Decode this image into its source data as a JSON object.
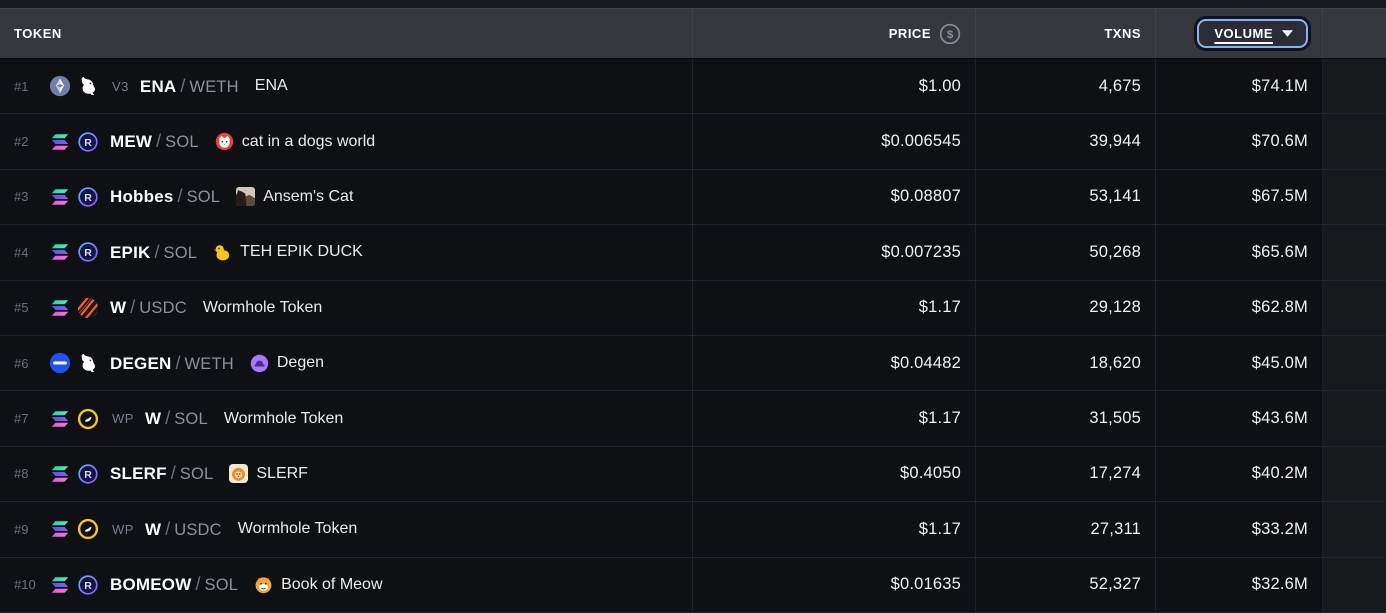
{
  "header": {
    "token_label": "TOKEN",
    "price_label": "PRICE",
    "price_icon": "dollar-circle-icon",
    "txns_label": "TXNS",
    "volume_label": "VOLUME",
    "volume_caret_icon": "caret-down-icon",
    "sorted_by": "VOLUME"
  },
  "colors": {
    "page_background": "#18191d",
    "header_background": "#35373d",
    "row_background": "#0f1013",
    "sort_button_border": "#86b3ef"
  },
  "table": {
    "pair_separator": "/",
    "rows": [
      {
        "rank": "#1",
        "chain_icon": "ethereum-icon",
        "dex_icon": "uniswap-icon",
        "label": "V3",
        "base": "ENA",
        "quote": "WETH",
        "logo_icon": "",
        "name": "ENA",
        "price": "$1.00",
        "txns": "4,675",
        "volume": "$74.1M"
      },
      {
        "rank": "#2",
        "chain_icon": "solana-icon",
        "dex_icon": "raydium-icon",
        "label": "",
        "base": "MEW",
        "quote": "SOL",
        "logo_icon": "mew-logo",
        "name": "cat in a dogs world",
        "price": "$0.006545",
        "txns": "39,944",
        "volume": "$70.6M"
      },
      {
        "rank": "#3",
        "chain_icon": "solana-icon",
        "dex_icon": "raydium-icon",
        "label": "",
        "base": "Hobbes",
        "quote": "SOL",
        "logo_icon": "ansems-cat-logo",
        "name": "Ansem's Cat",
        "price": "$0.08807",
        "txns": "53,141",
        "volume": "$67.5M"
      },
      {
        "rank": "#4",
        "chain_icon": "solana-icon",
        "dex_icon": "raydium-icon",
        "label": "",
        "base": "EPIK",
        "quote": "SOL",
        "logo_icon": "epik-duck-logo",
        "name": "TEH EPIK DUCK",
        "price": "$0.007235",
        "txns": "50,268",
        "volume": "$65.6M"
      },
      {
        "rank": "#5",
        "chain_icon": "solana-icon",
        "dex_icon": "phoenix-icon",
        "label": "",
        "base": "W",
        "quote": "USDC",
        "logo_icon": "",
        "name": "Wormhole Token",
        "price": "$1.17",
        "txns": "29,128",
        "volume": "$62.8M"
      },
      {
        "rank": "#6",
        "chain_icon": "base-icon",
        "dex_icon": "uniswap-icon",
        "label": "",
        "base": "DEGEN",
        "quote": "WETH",
        "logo_icon": "degen-hat-logo",
        "name": "Degen",
        "price": "$0.04482",
        "txns": "18,620",
        "volume": "$45.0M"
      },
      {
        "rank": "#7",
        "chain_icon": "solana-icon",
        "dex_icon": "orca-icon",
        "label": "WP",
        "base": "W",
        "quote": "SOL",
        "logo_icon": "",
        "name": "Wormhole Token",
        "price": "$1.17",
        "txns": "31,505",
        "volume": "$43.6M"
      },
      {
        "rank": "#8",
        "chain_icon": "solana-icon",
        "dex_icon": "raydium-icon",
        "label": "",
        "base": "SLERF",
        "quote": "SOL",
        "logo_icon": "slerf-logo",
        "name": "SLERF",
        "price": "$0.4050",
        "txns": "17,274",
        "volume": "$40.2M"
      },
      {
        "rank": "#9",
        "chain_icon": "solana-icon",
        "dex_icon": "orca-icon",
        "label": "WP",
        "base": "W",
        "quote": "USDC",
        "logo_icon": "",
        "name": "Wormhole Token",
        "price": "$1.17",
        "txns": "27,311",
        "volume": "$33.2M"
      },
      {
        "rank": "#10",
        "chain_icon": "solana-icon",
        "dex_icon": "raydium-icon",
        "label": "",
        "base": "BOMEOW",
        "quote": "SOL",
        "logo_icon": "bomeow-logo",
        "name": "Book of Meow",
        "price": "$0.01635",
        "txns": "52,327",
        "volume": "$32.6M"
      }
    ]
  }
}
